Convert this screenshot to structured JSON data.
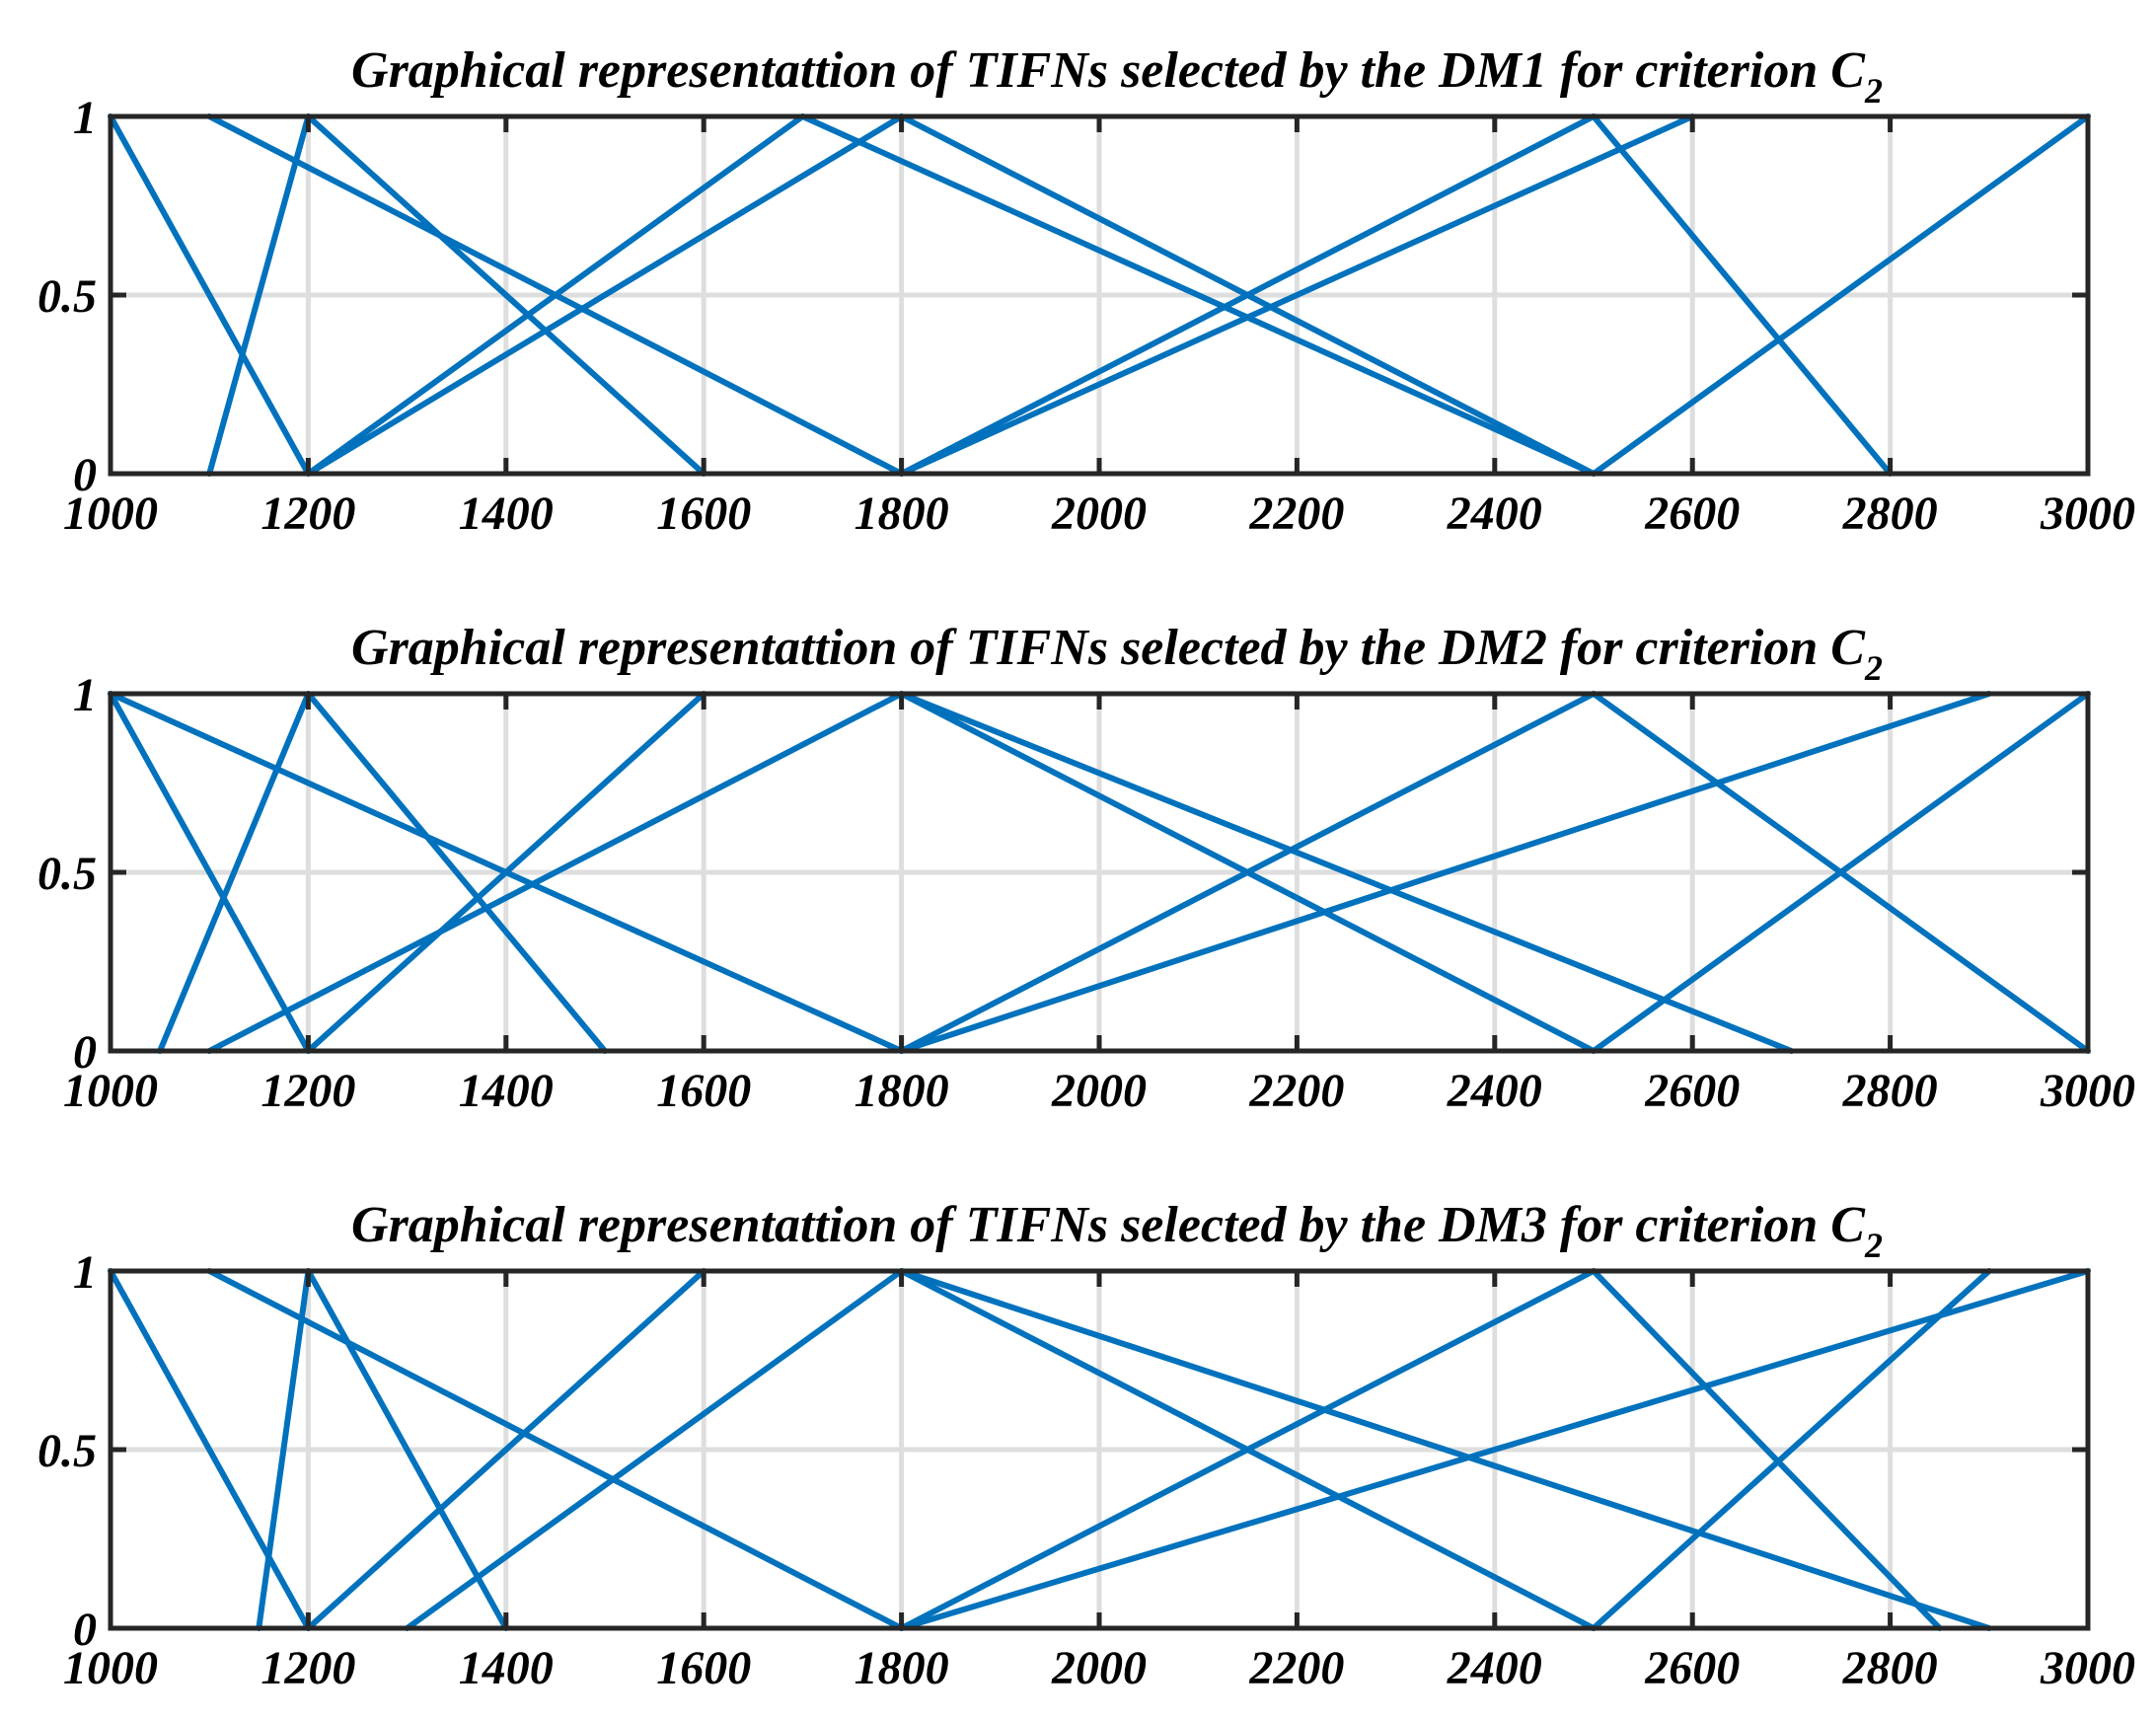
{
  "chart_data": [
    {
      "type": "line",
      "title": "Graphical representattion of TIFNs selected by the DM1 for criterion C",
      "title_subscript": "2",
      "xlim": [
        1000,
        3000
      ],
      "ylim": [
        0,
        1
      ],
      "xticks": [
        1000,
        1200,
        1400,
        1600,
        1800,
        2000,
        2200,
        2400,
        2600,
        2800,
        3000
      ],
      "xtick_labels": [
        "1000",
        "1200",
        "1400",
        "1600",
        "1800",
        "2000",
        "2200",
        "2400",
        "2600",
        "2800",
        "3000"
      ],
      "yticks": [
        0,
        0.5,
        1
      ],
      "ytick_labels": [
        "0",
        "0.5",
        "1"
      ],
      "grid": true,
      "line_color": "#0072BD",
      "series": [
        {
          "name": "segment",
          "x": [
            1000,
            1200
          ],
          "y": [
            1,
            0
          ]
        },
        {
          "name": "segment",
          "x": [
            1100,
            1200
          ],
          "y": [
            0,
            1
          ]
        },
        {
          "name": "segment",
          "x": [
            1200,
            1600
          ],
          "y": [
            1,
            0
          ]
        },
        {
          "name": "segment",
          "x": [
            1100,
            1800
          ],
          "y": [
            1,
            0
          ]
        },
        {
          "name": "segment",
          "x": [
            1200,
            1700
          ],
          "y": [
            0,
            1
          ]
        },
        {
          "name": "segment",
          "x": [
            1200,
            1800
          ],
          "y": [
            0,
            1
          ]
        },
        {
          "name": "segment",
          "x": [
            1700,
            2500
          ],
          "y": [
            1,
            0
          ]
        },
        {
          "name": "segment",
          "x": [
            1800,
            2500
          ],
          "y": [
            1,
            0
          ]
        },
        {
          "name": "segment",
          "x": [
            1800,
            2500
          ],
          "y": [
            0,
            1
          ]
        },
        {
          "name": "segment",
          "x": [
            1800,
            2600
          ],
          "y": [
            0,
            1
          ]
        },
        {
          "name": "segment",
          "x": [
            2500,
            2800
          ],
          "y": [
            1,
            0
          ]
        },
        {
          "name": "segment",
          "x": [
            2500,
            3000
          ],
          "y": [
            0,
            1
          ]
        }
      ]
    },
    {
      "type": "line",
      "title": "Graphical representattion of TIFNs selected by the DM2 for criterion C",
      "title_subscript": "2",
      "xlim": [
        1000,
        3000
      ],
      "ylim": [
        0,
        1
      ],
      "xticks": [
        1000,
        1200,
        1400,
        1600,
        1800,
        2000,
        2200,
        2400,
        2600,
        2800,
        3000
      ],
      "xtick_labels": [
        "1000",
        "1200",
        "1400",
        "1600",
        "1800",
        "2000",
        "2200",
        "2400",
        "2600",
        "2800",
        "3000"
      ],
      "yticks": [
        0,
        0.5,
        1
      ],
      "ytick_labels": [
        "0",
        "0.5",
        "1"
      ],
      "grid": true,
      "line_color": "#0072BD",
      "series": [
        {
          "name": "segment",
          "x": [
            1000,
            1200
          ],
          "y": [
            1,
            0
          ]
        },
        {
          "name": "segment",
          "x": [
            1000,
            1800
          ],
          "y": [
            1,
            0
          ]
        },
        {
          "name": "segment",
          "x": [
            1050,
            1200
          ],
          "y": [
            0,
            1
          ]
        },
        {
          "name": "segment",
          "x": [
            1200,
            1500
          ],
          "y": [
            1,
            0
          ]
        },
        {
          "name": "segment",
          "x": [
            1200,
            1600
          ],
          "y": [
            0,
            1
          ]
        },
        {
          "name": "segment",
          "x": [
            1100,
            1800
          ],
          "y": [
            0,
            1
          ]
        },
        {
          "name": "segment",
          "x": [
            1800,
            2500
          ],
          "y": [
            1,
            0
          ]
        },
        {
          "name": "segment",
          "x": [
            1800,
            2700
          ],
          "y": [
            1,
            0
          ]
        },
        {
          "name": "segment",
          "x": [
            1800,
            2500
          ],
          "y": [
            0,
            1
          ]
        },
        {
          "name": "segment",
          "x": [
            1800,
            2900
          ],
          "y": [
            0,
            1
          ]
        },
        {
          "name": "segment",
          "x": [
            2500,
            3000
          ],
          "y": [
            1,
            0
          ]
        },
        {
          "name": "segment",
          "x": [
            2500,
            3000
          ],
          "y": [
            0,
            1
          ]
        }
      ]
    },
    {
      "type": "line",
      "title": "Graphical representattion of TIFNs selected by the DM3 for criterion C",
      "title_subscript": "2",
      "xlim": [
        1000,
        3000
      ],
      "ylim": [
        0,
        1
      ],
      "xticks": [
        1000,
        1200,
        1400,
        1600,
        1800,
        2000,
        2200,
        2400,
        2600,
        2800,
        3000
      ],
      "xtick_labels": [
        "1000",
        "1200",
        "1400",
        "1600",
        "1800",
        "2000",
        "2200",
        "2400",
        "2600",
        "2800",
        "3000"
      ],
      "yticks": [
        0,
        0.5,
        1
      ],
      "ytick_labels": [
        "0",
        "0.5",
        "1"
      ],
      "grid": true,
      "line_color": "#0072BD",
      "series": [
        {
          "name": "segment",
          "x": [
            1000,
            1200
          ],
          "y": [
            1,
            0
          ]
        },
        {
          "name": "segment",
          "x": [
            1150,
            1200
          ],
          "y": [
            0,
            1
          ]
        },
        {
          "name": "segment",
          "x": [
            1200,
            1400
          ],
          "y": [
            1,
            0
          ]
        },
        {
          "name": "segment",
          "x": [
            1100,
            1800
          ],
          "y": [
            1,
            0
          ]
        },
        {
          "name": "segment",
          "x": [
            1200,
            1600
          ],
          "y": [
            0,
            1
          ]
        },
        {
          "name": "segment",
          "x": [
            1300,
            1800
          ],
          "y": [
            0,
            1
          ]
        },
        {
          "name": "segment",
          "x": [
            1800,
            2500
          ],
          "y": [
            1,
            0
          ]
        },
        {
          "name": "segment",
          "x": [
            1800,
            2900
          ],
          "y": [
            1,
            0
          ]
        },
        {
          "name": "segment",
          "x": [
            1800,
            2500
          ],
          "y": [
            0,
            1
          ]
        },
        {
          "name": "segment",
          "x": [
            1800,
            3000
          ],
          "y": [
            0,
            1
          ]
        },
        {
          "name": "segment",
          "x": [
            2500,
            2850
          ],
          "y": [
            1,
            0
          ]
        },
        {
          "name": "segment",
          "x": [
            2500,
            2900
          ],
          "y": [
            0,
            1
          ]
        }
      ]
    }
  ]
}
